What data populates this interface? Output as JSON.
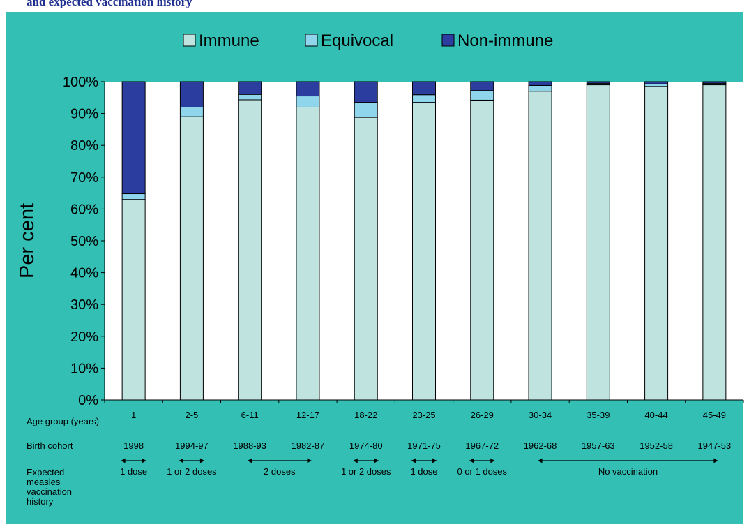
{
  "page": {
    "title": "and expected vaccination history"
  },
  "colors": {
    "panel_bg": "#34bfb4",
    "plot_bg": "#ffffff",
    "immune": "#bfe3df",
    "equivocal": "#8fd6ec",
    "non_immune": "#2b3d9e",
    "bar_stroke": "#000000",
    "title_text": "#1f2f8f"
  },
  "chart_data": {
    "type": "bar",
    "stacked": true,
    "title": "",
    "xlabel": "",
    "ylabel": "Per cent",
    "ylim": [
      0,
      100
    ],
    "y_ticks": [
      "0%",
      "10%",
      "20%",
      "30%",
      "40%",
      "50%",
      "60%",
      "70%",
      "80%",
      "90%",
      "100%"
    ],
    "legend_position": "top",
    "categories": [
      "1",
      "2-5",
      "6-11",
      "12-17",
      "18-22",
      "23-25",
      "26-29",
      "30-34",
      "35-39",
      "40-44",
      "45-49"
    ],
    "series": [
      {
        "name": "Immune",
        "values": [
          63,
          89,
          94.3,
          92,
          88.8,
          93.5,
          94.2,
          97,
          99,
          98.5,
          99
        ]
      },
      {
        "name": "Equivocal",
        "values": [
          1.8,
          3,
          1.7,
          3.5,
          4.7,
          2.4,
          3,
          1.8,
          0.5,
          0.8,
          0.5
        ]
      },
      {
        "name": "Non-immune",
        "values": [
          35.2,
          8,
          4,
          4.5,
          6.5,
          4.1,
          2.8,
          1.2,
          0.5,
          0.7,
          0.5
        ]
      }
    ],
    "rows": {
      "age_label": "Age group (years)",
      "cohort_label": "Birth cohort",
      "cohorts": [
        "1998",
        "1994-97",
        "1988-93",
        "1982-87",
        "1974-80",
        "1971-75",
        "1967-72",
        "1962-68",
        "1957-63",
        "1952-58",
        "1947-53"
      ],
      "vaccination_label_lines": [
        "Expected",
        "measles",
        "vaccination",
        "history"
      ],
      "vaccination_spans": [
        {
          "from": 0,
          "to": 0,
          "label": "1 dose"
        },
        {
          "from": 1,
          "to": 1,
          "label": "1 or 2 doses"
        },
        {
          "from": 2,
          "to": 3,
          "label": "2 doses"
        },
        {
          "from": 4,
          "to": 4,
          "label": "1 or 2 doses"
        },
        {
          "from": 5,
          "to": 5,
          "label": "1 dose"
        },
        {
          "from": 6,
          "to": 6,
          "label": "0 or 1 doses"
        },
        {
          "from": 7,
          "to": 10,
          "label": "No vaccination"
        }
      ]
    }
  }
}
